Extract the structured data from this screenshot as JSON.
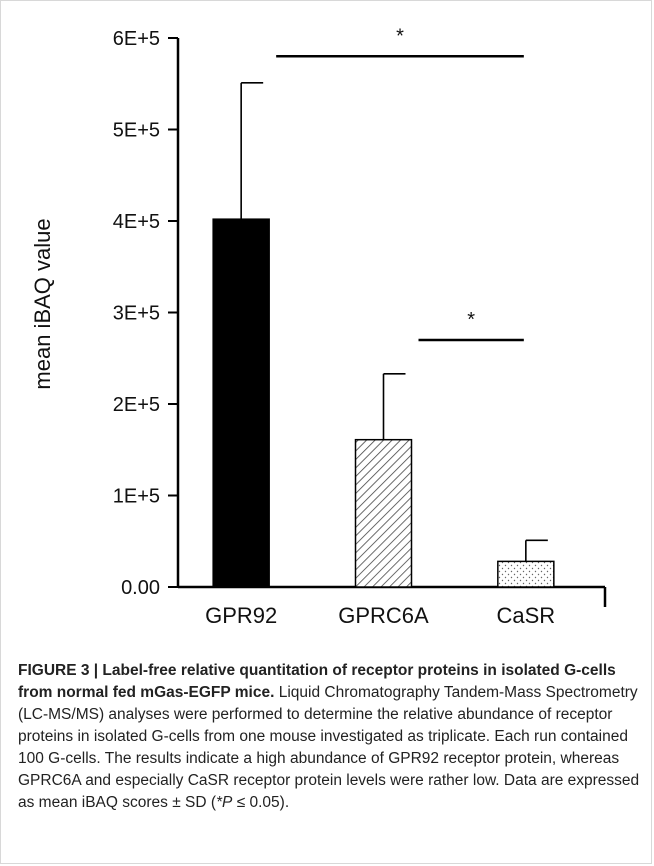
{
  "chart_data": {
    "type": "bar",
    "categories": [
      "GPR92",
      "GPRC6A",
      "CaSR"
    ],
    "values": [
      402000,
      161000,
      28000
    ],
    "errors": [
      149000,
      72000,
      23000
    ],
    "ylabel": "mean iBAQ value",
    "ylim": [
      0,
      600000
    ],
    "yticks": [
      0,
      100000,
      200000,
      300000,
      400000,
      500000,
      600000
    ],
    "ytick_labels": [
      "0.00",
      "1E+5",
      "2E+5",
      "3E+5",
      "4E+5",
      "5E+5",
      "6E+5"
    ],
    "bar_patterns": [
      "solid",
      "diagonal-hatch",
      "dots"
    ],
    "bar_colors": [
      "#000000",
      "#444444",
      "#888888"
    ],
    "grid": false,
    "significance": [
      {
        "from": "GPR92",
        "to": "CaSR",
        "y": 580000,
        "label": "*"
      },
      {
        "from": "GPRC6A",
        "to": "CaSR",
        "y": 270000,
        "label": "*"
      }
    ]
  },
  "caption": {
    "title": "FIGURE 3 | Label-free relative quantitation of receptor proteins in isolated G-cells from normal fed mGas-EGFP mice.",
    "body": " Liquid Chromatography Tandem-Mass Spectrometry (LC-MS/MS) analyses were performed to determine the relative abundance of receptor proteins in isolated G-cells from one mouse investigated as triplicate. Each run contained 100 G-cells. The results indicate a high abundance of GPR92 receptor protein, whereas GPRC6A and especially CaSR receptor protein levels were rather low. Data are expressed as mean iBAQ scores ± SD (",
    "p_symbol": "*P",
    "p_rest": " ≤ 0.05)."
  }
}
